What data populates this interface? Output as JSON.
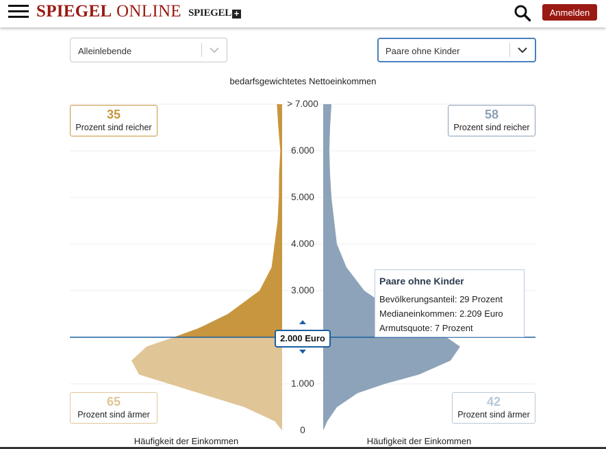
{
  "header": {
    "logo_bold": "SPIEGEL",
    "logo_rest": "ONLINE",
    "plus_logo": "SPIEGEL",
    "plus_symbol": "+",
    "login_label": "Anmelden",
    "icons": [
      "hamburger-menu-icon",
      "search-icon"
    ]
  },
  "selectors": {
    "left": {
      "value": "Alleinlebende"
    },
    "right": {
      "value": "Paare ohne Kinder"
    }
  },
  "chart_data": {
    "type": "area",
    "title": "bedarfsgewichtetes Nettoeinkommen",
    "y_ticks": [
      "0",
      "1.000",
      "2.000",
      "3.000",
      "4.000",
      "5.000",
      "6.000",
      "> 7.000"
    ],
    "ylim": [
      0,
      7000
    ],
    "xlabel_left": "Häufigkeit der Einkommen",
    "xlabel_right": "Häufigkeit der Einkommen",
    "threshold": {
      "value": 2000,
      "label": "2.000 Euro"
    },
    "series": [
      {
        "name": "Alleinlebende",
        "side": "left",
        "color_above": "#c8963e",
        "color_below": "#e0c597",
        "income": [
          0,
          200,
          500,
          800,
          1000,
          1200,
          1500,
          1800,
          2000,
          2200,
          2500,
          3000,
          3500,
          4000,
          4500,
          5000,
          5500,
          6000,
          6500,
          7000
        ],
        "density": [
          0,
          0.05,
          0.25,
          0.55,
          0.75,
          0.95,
          1.0,
          0.9,
          0.72,
          0.55,
          0.36,
          0.15,
          0.07,
          0.05,
          0.03,
          0.022,
          0.02,
          0.012,
          0.025,
          0.035
        ]
      },
      {
        "name": "Paare ohne Kinder",
        "side": "right",
        "color_above": "#8da3b9",
        "color_below": "#8da3b9",
        "income": [
          0,
          200,
          500,
          800,
          1000,
          1200,
          1500,
          1800,
          2000,
          2200,
          2500,
          3000,
          3500,
          4000,
          4500,
          5000,
          5500,
          6000,
          6500,
          7000
        ],
        "density": [
          0,
          0.03,
          0.1,
          0.25,
          0.45,
          0.7,
          0.93,
          1.0,
          0.9,
          0.75,
          0.55,
          0.3,
          0.17,
          0.1,
          0.08,
          0.06,
          0.05,
          0.045,
          0.05,
          0.06
        ]
      }
    ]
  },
  "stats": {
    "left_upper": {
      "value": "35",
      "label": "Prozent sind reicher"
    },
    "left_lower": {
      "value": "65",
      "label": "Prozent sind ärmer"
    },
    "right_upper": {
      "value": "58",
      "label": "Prozent sind reicher"
    },
    "right_lower": {
      "value": "42",
      "label": "Prozent sind ärmer"
    }
  },
  "tooltip": {
    "title": "Paare ohne Kinder",
    "rows": [
      "Bevölkerungsanteil: 29 Prozent",
      "Medianeinkommen: 2.209 Euro",
      "Armutsquote: 7 Prozent"
    ]
  }
}
